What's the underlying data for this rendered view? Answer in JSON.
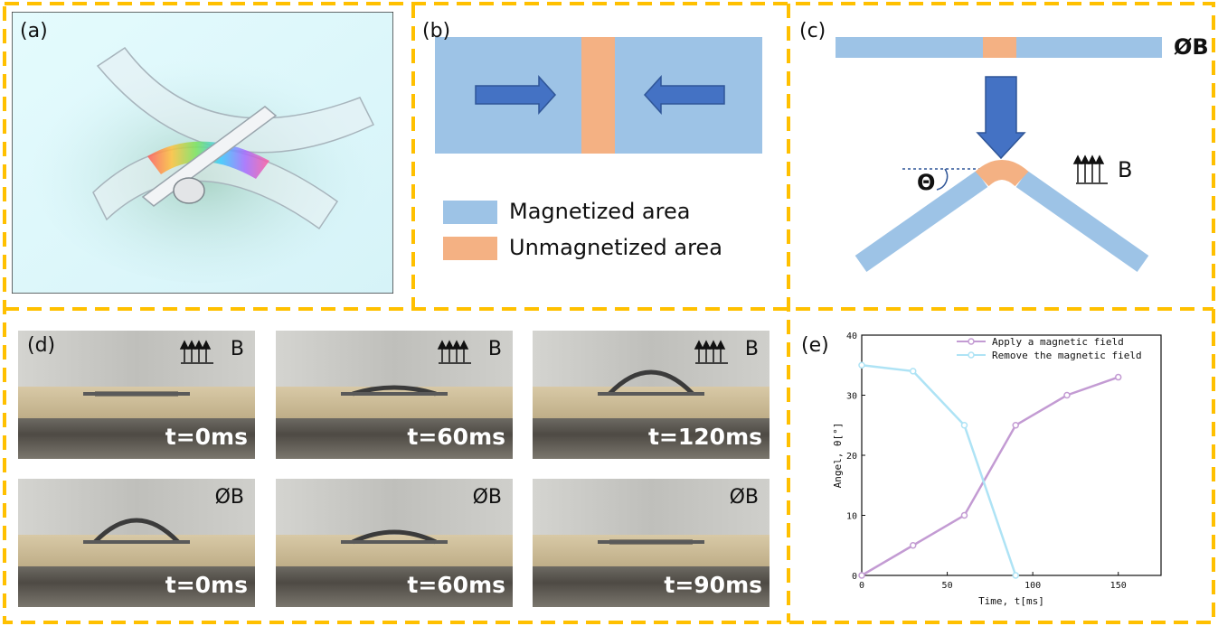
{
  "panels": {
    "a": {
      "label": "(a)"
    },
    "b": {
      "label": "(b)",
      "legend": [
        {
          "text": "Magnetized area",
          "color": "#9dc3e6"
        },
        {
          "text": "Unmagnetized area",
          "color": "#f4b183"
        }
      ]
    },
    "c": {
      "label": "(c)",
      "no_field": "ØB",
      "field": "B",
      "angle_symbol": "Θ"
    },
    "d": {
      "label": "(d)",
      "rows": [
        [
          {
            "field": "B",
            "time": "t=0ms",
            "bend": 0.0
          },
          {
            "field": "B",
            "time": "t=60ms",
            "bend": 0.3
          },
          {
            "field": "B",
            "time": "t=120ms",
            "bend": 1.0
          }
        ],
        [
          {
            "field": "ØB",
            "time": "t=0ms",
            "bend": 1.0
          },
          {
            "field": "ØB",
            "time": "t=60ms",
            "bend": 0.45
          },
          {
            "field": "ØB",
            "time": "t=90ms",
            "bend": 0.0
          }
        ]
      ]
    },
    "e": {
      "label": "(e)"
    }
  },
  "colors": {
    "frame": "#ffc000",
    "magnetized": "#9dc3e6",
    "unmagnetized": "#f4b183",
    "arrow": "#4472c4",
    "apply_series": "#c39bd3",
    "remove_series": "#aee3f5"
  },
  "chart_data": {
    "type": "line",
    "title": "",
    "xlabel": "Time, t[ms]",
    "ylabel": "Angel, θ[°]",
    "xlim": [
      0,
      175
    ],
    "ylim": [
      0,
      40
    ],
    "xticks": [
      0,
      50,
      100,
      150
    ],
    "yticks": [
      0,
      10,
      20,
      30,
      40
    ],
    "legend_position": "top-right",
    "series": [
      {
        "name": "Apply a magnetic field",
        "color": "#c39bd3",
        "x": [
          0,
          30,
          60,
          90,
          120,
          150
        ],
        "y": [
          0,
          5,
          10,
          25,
          30,
          33
        ]
      },
      {
        "name": "Remove the magnetic field",
        "color": "#aee3f5",
        "x": [
          0,
          30,
          60,
          90
        ],
        "y": [
          35,
          34,
          25,
          0
        ]
      }
    ]
  }
}
